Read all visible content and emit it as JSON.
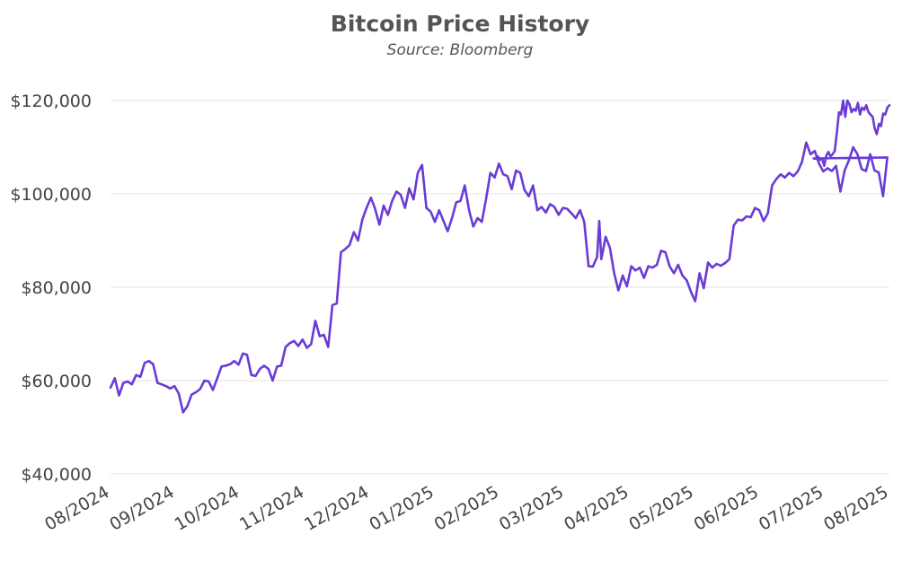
{
  "chart_data": {
    "type": "line",
    "title": "Bitcoin Price History",
    "subtitle": "Source: Bloomberg",
    "xlabel": "",
    "ylabel": "",
    "y_ticks": [
      "$40,000",
      "$60,000",
      "$80,000",
      "$100,000",
      "$120,000"
    ],
    "y_tick_values": [
      40000,
      60000,
      80000,
      100000,
      120000
    ],
    "x_ticks": [
      "08/2024",
      "09/2024",
      "10/2024",
      "11/2024",
      "12/2024",
      "01/2025",
      "02/2025",
      "03/2025",
      "04/2025",
      "05/2025",
      "06/2025",
      "07/2025",
      "08/2025"
    ],
    "ylim": [
      40000,
      120000
    ],
    "xlim": [
      "2024-08-01",
      "2025-08-01"
    ],
    "grid": true,
    "color": "#6a3bd6",
    "series": [
      {
        "name": "",
        "points": [
          [
            "2024-08-01",
            58500
          ],
          [
            "2024-08-03",
            60500
          ],
          [
            "2024-08-05",
            56800
          ],
          [
            "2024-08-07",
            59500
          ],
          [
            "2024-08-09",
            59800
          ],
          [
            "2024-08-11",
            59200
          ],
          [
            "2024-08-13",
            61200
          ],
          [
            "2024-08-15",
            60800
          ],
          [
            "2024-08-17",
            63800
          ],
          [
            "2024-08-19",
            64200
          ],
          [
            "2024-08-21",
            63500
          ],
          [
            "2024-08-23",
            59500
          ],
          [
            "2024-08-25",
            59200
          ],
          [
            "2024-08-27",
            58800
          ],
          [
            "2024-08-29",
            58300
          ],
          [
            "2024-08-31",
            58800
          ],
          [
            "2024-09-02",
            57200
          ],
          [
            "2024-09-04",
            53200
          ],
          [
            "2024-09-06",
            54500
          ],
          [
            "2024-09-08",
            57000
          ],
          [
            "2024-09-10",
            57500
          ],
          [
            "2024-09-12",
            58200
          ],
          [
            "2024-09-14",
            60000
          ],
          [
            "2024-09-16",
            59800
          ],
          [
            "2024-09-18",
            58000
          ],
          [
            "2024-09-20",
            60500
          ],
          [
            "2024-09-22",
            63000
          ],
          [
            "2024-09-24",
            63200
          ],
          [
            "2024-09-26",
            63500
          ],
          [
            "2024-09-28",
            64200
          ],
          [
            "2024-09-30",
            63400
          ],
          [
            "2024-10-02",
            65800
          ],
          [
            "2024-10-04",
            65500
          ],
          [
            "2024-10-06",
            61200
          ],
          [
            "2024-10-08",
            61000
          ],
          [
            "2024-10-10",
            62500
          ],
          [
            "2024-10-12",
            63200
          ],
          [
            "2024-10-14",
            62500
          ],
          [
            "2024-10-16",
            60000
          ],
          [
            "2024-10-18",
            63000
          ],
          [
            "2024-10-20",
            63200
          ],
          [
            "2024-10-22",
            67200
          ],
          [
            "2024-10-24",
            68000
          ],
          [
            "2024-10-26",
            68500
          ],
          [
            "2024-10-28",
            67400
          ],
          [
            "2024-10-30",
            68800
          ],
          [
            "2024-11-01",
            67000
          ],
          [
            "2024-11-03",
            67800
          ],
          [
            "2024-11-05",
            72800
          ],
          [
            "2024-11-07",
            69500
          ],
          [
            "2024-11-09",
            69800
          ],
          [
            "2024-11-11",
            67200
          ],
          [
            "2024-11-13",
            76200
          ],
          [
            "2024-11-15",
            76500
          ],
          [
            "2024-11-17",
            87500
          ],
          [
            "2024-11-19",
            88200
          ],
          [
            "2024-11-21",
            89000
          ],
          [
            "2024-11-23",
            91800
          ],
          [
            "2024-11-25",
            90000
          ],
          [
            "2024-11-27",
            94500
          ],
          [
            "2024-11-29",
            97000
          ],
          [
            "2024-12-01",
            99200
          ],
          [
            "2024-12-03",
            96800
          ],
          [
            "2024-12-05",
            93400
          ],
          [
            "2024-12-07",
            97500
          ],
          [
            "2024-12-09",
            95500
          ],
          [
            "2024-12-11",
            98500
          ],
          [
            "2024-12-13",
            100500
          ],
          [
            "2024-12-15",
            99800
          ],
          [
            "2024-12-17",
            97000
          ],
          [
            "2024-12-19",
            101200
          ],
          [
            "2024-12-21",
            98800
          ],
          [
            "2024-12-23",
            104500
          ],
          [
            "2024-12-25",
            106200
          ],
          [
            "2024-12-27",
            97000
          ],
          [
            "2024-12-29",
            96200
          ],
          [
            "2024-12-31",
            94000
          ],
          [
            "2025-01-02",
            96500
          ],
          [
            "2025-01-04",
            94200
          ],
          [
            "2025-01-06",
            92000
          ],
          [
            "2025-01-08",
            94800
          ],
          [
            "2025-01-10",
            98200
          ],
          [
            "2025-01-12",
            98500
          ],
          [
            "2025-01-14",
            101800
          ],
          [
            "2025-01-16",
            96500
          ],
          [
            "2025-01-18",
            93000
          ],
          [
            "2025-01-20",
            94800
          ],
          [
            "2025-01-22",
            94000
          ],
          [
            "2025-01-24",
            99000
          ],
          [
            "2025-01-26",
            104500
          ],
          [
            "2025-01-28",
            103500
          ],
          [
            "2025-01-30",
            106500
          ],
          [
            "2025-02-01",
            104200
          ],
          [
            "2025-02-03",
            103800
          ],
          [
            "2025-02-05",
            101000
          ],
          [
            "2025-02-07",
            105000
          ],
          [
            "2025-02-09",
            104500
          ],
          [
            "2025-02-11",
            100800
          ],
          [
            "2025-02-13",
            99500
          ],
          [
            "2025-02-15",
            101800
          ],
          [
            "2025-02-17",
            96500
          ],
          [
            "2025-02-19",
            97200
          ],
          [
            "2025-02-21",
            96000
          ],
          [
            "2025-02-23",
            97800
          ],
          [
            "2025-02-25",
            97200
          ],
          [
            "2025-02-27",
            95500
          ],
          [
            "2025-03-01",
            97000
          ],
          [
            "2025-03-03",
            96800
          ],
          [
            "2025-03-05",
            95800
          ],
          [
            "2025-03-07",
            94800
          ],
          [
            "2025-03-09",
            96500
          ],
          [
            "2025-03-11",
            94000
          ],
          [
            "2025-03-13",
            84500
          ],
          [
            "2025-03-15",
            84400
          ],
          [
            "2025-03-17",
            86500
          ],
          [
            "2025-03-18",
            94200
          ],
          [
            "2025-03-19",
            86000
          ],
          [
            "2025-03-21",
            90800
          ],
          [
            "2025-03-23",
            88500
          ],
          [
            "2025-03-25",
            83000
          ],
          [
            "2025-03-27",
            79300
          ],
          [
            "2025-03-29",
            82500
          ],
          [
            "2025-03-31",
            80200
          ],
          [
            "2025-04-02",
            84500
          ],
          [
            "2025-04-04",
            83600
          ],
          [
            "2025-04-06",
            84200
          ],
          [
            "2025-04-08",
            82000
          ],
          [
            "2025-04-10",
            84500
          ],
          [
            "2025-04-12",
            84200
          ],
          [
            "2025-04-14",
            84800
          ],
          [
            "2025-04-16",
            87800
          ],
          [
            "2025-04-18",
            87500
          ],
          [
            "2025-04-20",
            84500
          ],
          [
            "2025-04-22",
            83000
          ],
          [
            "2025-04-24",
            84800
          ],
          [
            "2025-04-26",
            82500
          ],
          [
            "2025-04-28",
            81500
          ],
          [
            "2025-04-30",
            79000
          ],
          [
            "2025-05-02",
            77000
          ],
          [
            "2025-05-04",
            83000
          ],
          [
            "2025-05-06",
            79800
          ],
          [
            "2025-05-08",
            85300
          ],
          [
            "2025-05-10",
            84200
          ],
          [
            "2025-05-12",
            85000
          ],
          [
            "2025-05-14",
            84600
          ],
          [
            "2025-05-16",
            85200
          ],
          [
            "2025-05-18",
            86000
          ],
          [
            "2025-05-20",
            93200
          ],
          [
            "2025-05-22",
            94500
          ],
          [
            "2025-05-24",
            94300
          ],
          [
            "2025-05-26",
            95200
          ],
          [
            "2025-05-28",
            95000
          ],
          [
            "2025-05-30",
            97000
          ],
          [
            "2025-06-01",
            96500
          ],
          [
            "2025-06-03",
            94200
          ],
          [
            "2025-06-05",
            95800
          ],
          [
            "2025-06-07",
            101800
          ],
          [
            "2025-06-09",
            103200
          ],
          [
            "2025-06-11",
            104200
          ],
          [
            "2025-06-13",
            103500
          ],
          [
            "2025-06-15",
            104500
          ],
          [
            "2025-06-17",
            103800
          ],
          [
            "2025-06-19",
            104800
          ],
          [
            "2025-06-21",
            106800
          ],
          [
            "2025-06-23",
            111000
          ],
          [
            "2025-06-25",
            108500
          ],
          [
            "2025-06-27",
            109200
          ],
          [
            "2025-06-29",
            106500
          ],
          [
            "2025-07-01",
            104800
          ],
          [
            "2025-07-03",
            105500
          ],
          [
            "2025-07-05",
            104900
          ],
          [
            "2025-07-07",
            106000
          ],
          [
            "2025-07-09",
            100500
          ],
          [
            "2025-07-11",
            105000
          ],
          [
            "2025-07-13",
            107200
          ],
          [
            "2025-07-15",
            110000
          ],
          [
            "2025-07-17",
            108500
          ],
          [
            "2025-07-19",
            105300
          ],
          [
            "2025-07-21",
            104900
          ],
          [
            "2025-07-23",
            108500
          ],
          [
            "2025-07-25",
            105000
          ],
          [
            "2025-07-27",
            104600
          ],
          [
            "2025-07-29",
            99500
          ],
          [
            "2025-07-31",
            107800
          ]
        ]
      }
    ]
  },
  "series_tail": {
    "x_start": 0.9,
    "values": [
      107600,
      107500,
      108000,
      107300,
      107600,
      106000,
      108200,
      109000,
      108000,
      108500,
      109200,
      113000,
      117500,
      117000,
      120000,
      116500,
      120000,
      119200,
      117500,
      118200,
      117800,
      119500,
      117000,
      118500,
      118000,
      119000,
      117500,
      117000,
      116500,
      114000,
      112800,
      115000,
      114500,
      117200,
      117000,
      118500,
      119000
    ]
  }
}
